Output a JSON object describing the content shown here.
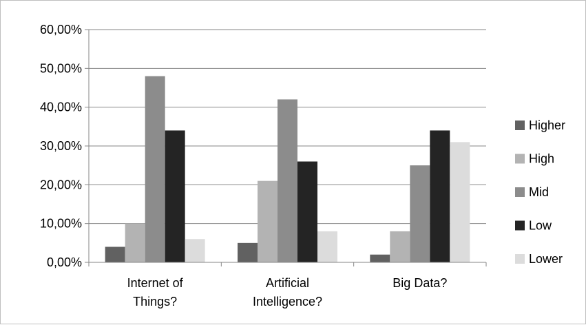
{
  "chart_data": {
    "type": "bar",
    "categories": [
      [
        "Internet of",
        "Things?"
      ],
      [
        "Artificial",
        "Intelligence?"
      ],
      [
        "Big Data?"
      ]
    ],
    "series": [
      {
        "name": "Higher",
        "color": "#616161",
        "values": [
          4,
          5,
          2
        ]
      },
      {
        "name": "High",
        "color": "#b3b3b3",
        "values": [
          10,
          21,
          8
        ]
      },
      {
        "name": "Mid",
        "color": "#8c8c8c",
        "values": [
          48,
          42,
          25
        ]
      },
      {
        "name": "Low",
        "color": "#242424",
        "values": [
          34,
          26,
          34
        ]
      },
      {
        "name": "Lower",
        "color": "#dcdcdc",
        "values": [
          6,
          8,
          31
        ]
      }
    ],
    "yticks": [
      "0,00%",
      "10,00%",
      "20,00%",
      "30,00%",
      "40,00%",
      "50,00%",
      "60,00%"
    ],
    "ylim": [
      0,
      60
    ],
    "grid": true,
    "legend": "right",
    "title": "",
    "xlabel": "",
    "ylabel": ""
  }
}
